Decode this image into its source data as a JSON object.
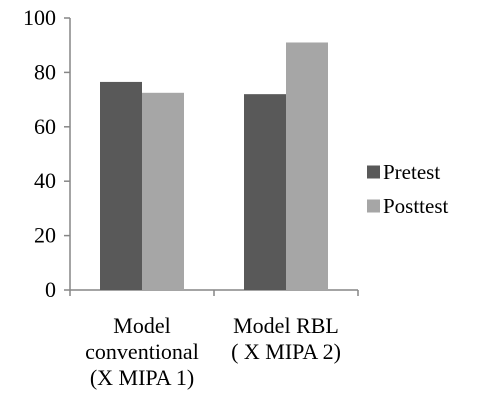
{
  "chart_data": {
    "type": "bar",
    "categories": [
      [
        "Model",
        "conventional",
        "(X MIPA 1)"
      ],
      [
        "Model RBL",
        "( X MIPA 2)"
      ]
    ],
    "series": [
      {
        "name": "Pretest",
        "values": [
          76.5,
          72
        ],
        "color": "#595959"
      },
      {
        "name": "Posttest",
        "values": [
          72.5,
          91
        ],
        "color": "#a6a6a6"
      }
    ],
    "ylim": [
      0,
      100
    ],
    "yticks": [
      0,
      20,
      40,
      60,
      80,
      100
    ],
    "grid": false,
    "legend": "right"
  }
}
